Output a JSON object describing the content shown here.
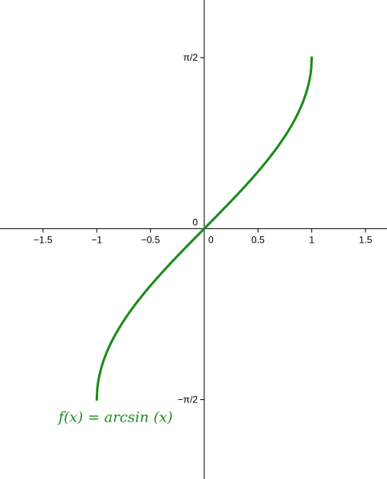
{
  "chart_data": {
    "type": "line",
    "title": "",
    "xlabel": "",
    "ylabel": "",
    "xlim": [
      -1.9,
      1.7
    ],
    "ylim": [
      -2.3,
      2.1
    ],
    "grid": false,
    "x_ticks": [
      {
        "value": -1.5,
        "label": "−1.5"
      },
      {
        "value": -1,
        "label": "−1"
      },
      {
        "value": -0.5,
        "label": "−0.5"
      },
      {
        "value": 0,
        "label": "0"
      },
      {
        "value": 0.5,
        "label": "0.5"
      },
      {
        "value": 1,
        "label": "1"
      },
      {
        "value": 1.5,
        "label": "1.5"
      }
    ],
    "y_ticks": [
      {
        "value": 1.5708,
        "label": "π/2"
      },
      {
        "value": -1.5708,
        "label": "−π/2"
      }
    ],
    "origin_label": "0",
    "series": [
      {
        "name": "",
        "function": "arcsin",
        "color": "#1a8c1a",
        "x": [
          -1,
          -0.99,
          -0.95,
          -0.9,
          -0.8,
          -0.7,
          -0.6,
          -0.5,
          -0.4,
          -0.3,
          -0.2,
          -0.1,
          0,
          0.1,
          0.2,
          0.3,
          0.4,
          0.5,
          0.6,
          0.7,
          0.8,
          0.9,
          0.95,
          0.99,
          1
        ],
        "y": [
          -1.5708,
          -1.4293,
          -1.2532,
          -1.1198,
          -0.9273,
          -0.7754,
          -0.6435,
          -0.5236,
          -0.4115,
          -0.3047,
          -0.2014,
          -0.1002,
          0,
          0.1002,
          0.2014,
          0.3047,
          0.4115,
          0.5236,
          0.6435,
          0.7754,
          0.9273,
          1.1198,
          1.2532,
          1.4293,
          1.5708
        ]
      }
    ],
    "annotations": [
      {
        "text": "f(x)  =  arcsin (x)",
        "color": "#1a8c1a",
        "anchor_x": -1,
        "anchor_y": -1.5708
      }
    ]
  }
}
